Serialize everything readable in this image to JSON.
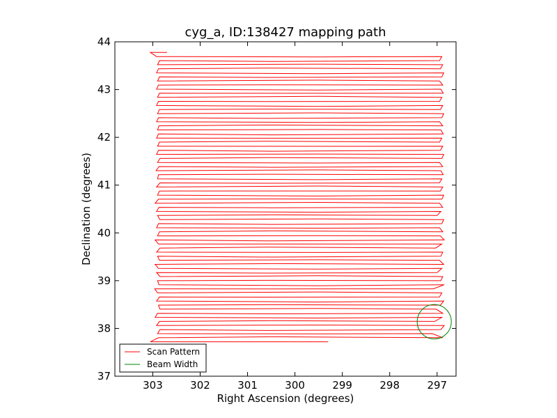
{
  "chart_data": {
    "type": "line",
    "title": "cyg_a, ID:138427 mapping path",
    "xlabel": "Right Ascension (degrees)",
    "ylabel": "Declination (degrees)",
    "xlim": [
      303.8,
      296.6
    ],
    "ylim": [
      37,
      44
    ],
    "x_inverted": true,
    "xticks": [
      303,
      302,
      301,
      300,
      299,
      298,
      297
    ],
    "yticks": [
      37,
      38,
      39,
      40,
      41,
      42,
      43,
      44
    ],
    "grid": false,
    "legend_position": "lower-left",
    "series": [
      {
        "name": "Scan Pattern",
        "color": "#ff0000",
        "scan": {
          "dec_start": 37.72,
          "dec_end": 43.77,
          "row_spacing": 0.0853,
          "east_edge_ra": 302.9,
          "west_edge_ra": 296.9,
          "first_row_end_ra": 299.3,
          "last_row_start_ra": 302.7
        },
        "east_turn_ra": [
          303.05,
          302.88,
          302.9,
          302.85,
          302.92,
          302.86,
          302.95,
          302.9,
          302.85,
          302.88,
          302.92,
          302.86,
          302.9,
          302.96,
          302.87,
          302.9,
          302.85,
          302.92,
          302.88,
          302.95,
          302.86,
          302.9,
          302.92,
          302.85,
          302.88,
          302.95,
          302.9,
          302.86,
          302.92,
          302.88,
          302.85,
          302.9,
          302.92,
          302.87,
          302.95,
          302.88,
          302.9,
          302.86,
          302.92,
          302.85,
          302.9,
          302.88,
          302.93,
          302.87,
          302.9,
          302.85,
          302.92,
          302.88,
          302.9,
          302.86,
          302.92,
          302.88,
          302.9,
          302.87,
          302.92,
          302.88,
          302.9,
          302.86,
          302.92,
          302.88,
          302.9,
          302.86,
          302.92,
          302.88,
          302.9,
          302.86,
          302.92,
          302.88,
          302.9,
          302.86,
          302.92
        ],
        "west_turn_ra": [
          296.95,
          296.88,
          297.1,
          296.92,
          296.85,
          297.05,
          296.9,
          296.88,
          297.02,
          296.93,
          296.86,
          296.95,
          296.9,
          297.08,
          296.85,
          296.92,
          296.88,
          297.0,
          296.9,
          296.86,
          296.95,
          296.92,
          296.88,
          297.03,
          296.9,
          296.85,
          296.93,
          296.88,
          296.95,
          296.9,
          296.86,
          297.0,
          296.92,
          296.88,
          296.95,
          296.9,
          296.86,
          296.93,
          296.88,
          296.95,
          296.9,
          296.87,
          296.92,
          296.88,
          296.95,
          296.9,
          296.86,
          296.93,
          296.88,
          296.95,
          296.9,
          296.87,
          296.92,
          296.88,
          296.95,
          296.9,
          296.86,
          296.93,
          296.88,
          296.95,
          296.9,
          296.87,
          296.92,
          296.88,
          296.95,
          296.9,
          296.86,
          296.93,
          296.88,
          296.95,
          296.9
        ]
      },
      {
        "name": "Beam Width",
        "color": "#008000",
        "circle": {
          "center_ra": 297.06,
          "center_dec": 38.14,
          "radius_deg": 0.36
        }
      }
    ]
  }
}
